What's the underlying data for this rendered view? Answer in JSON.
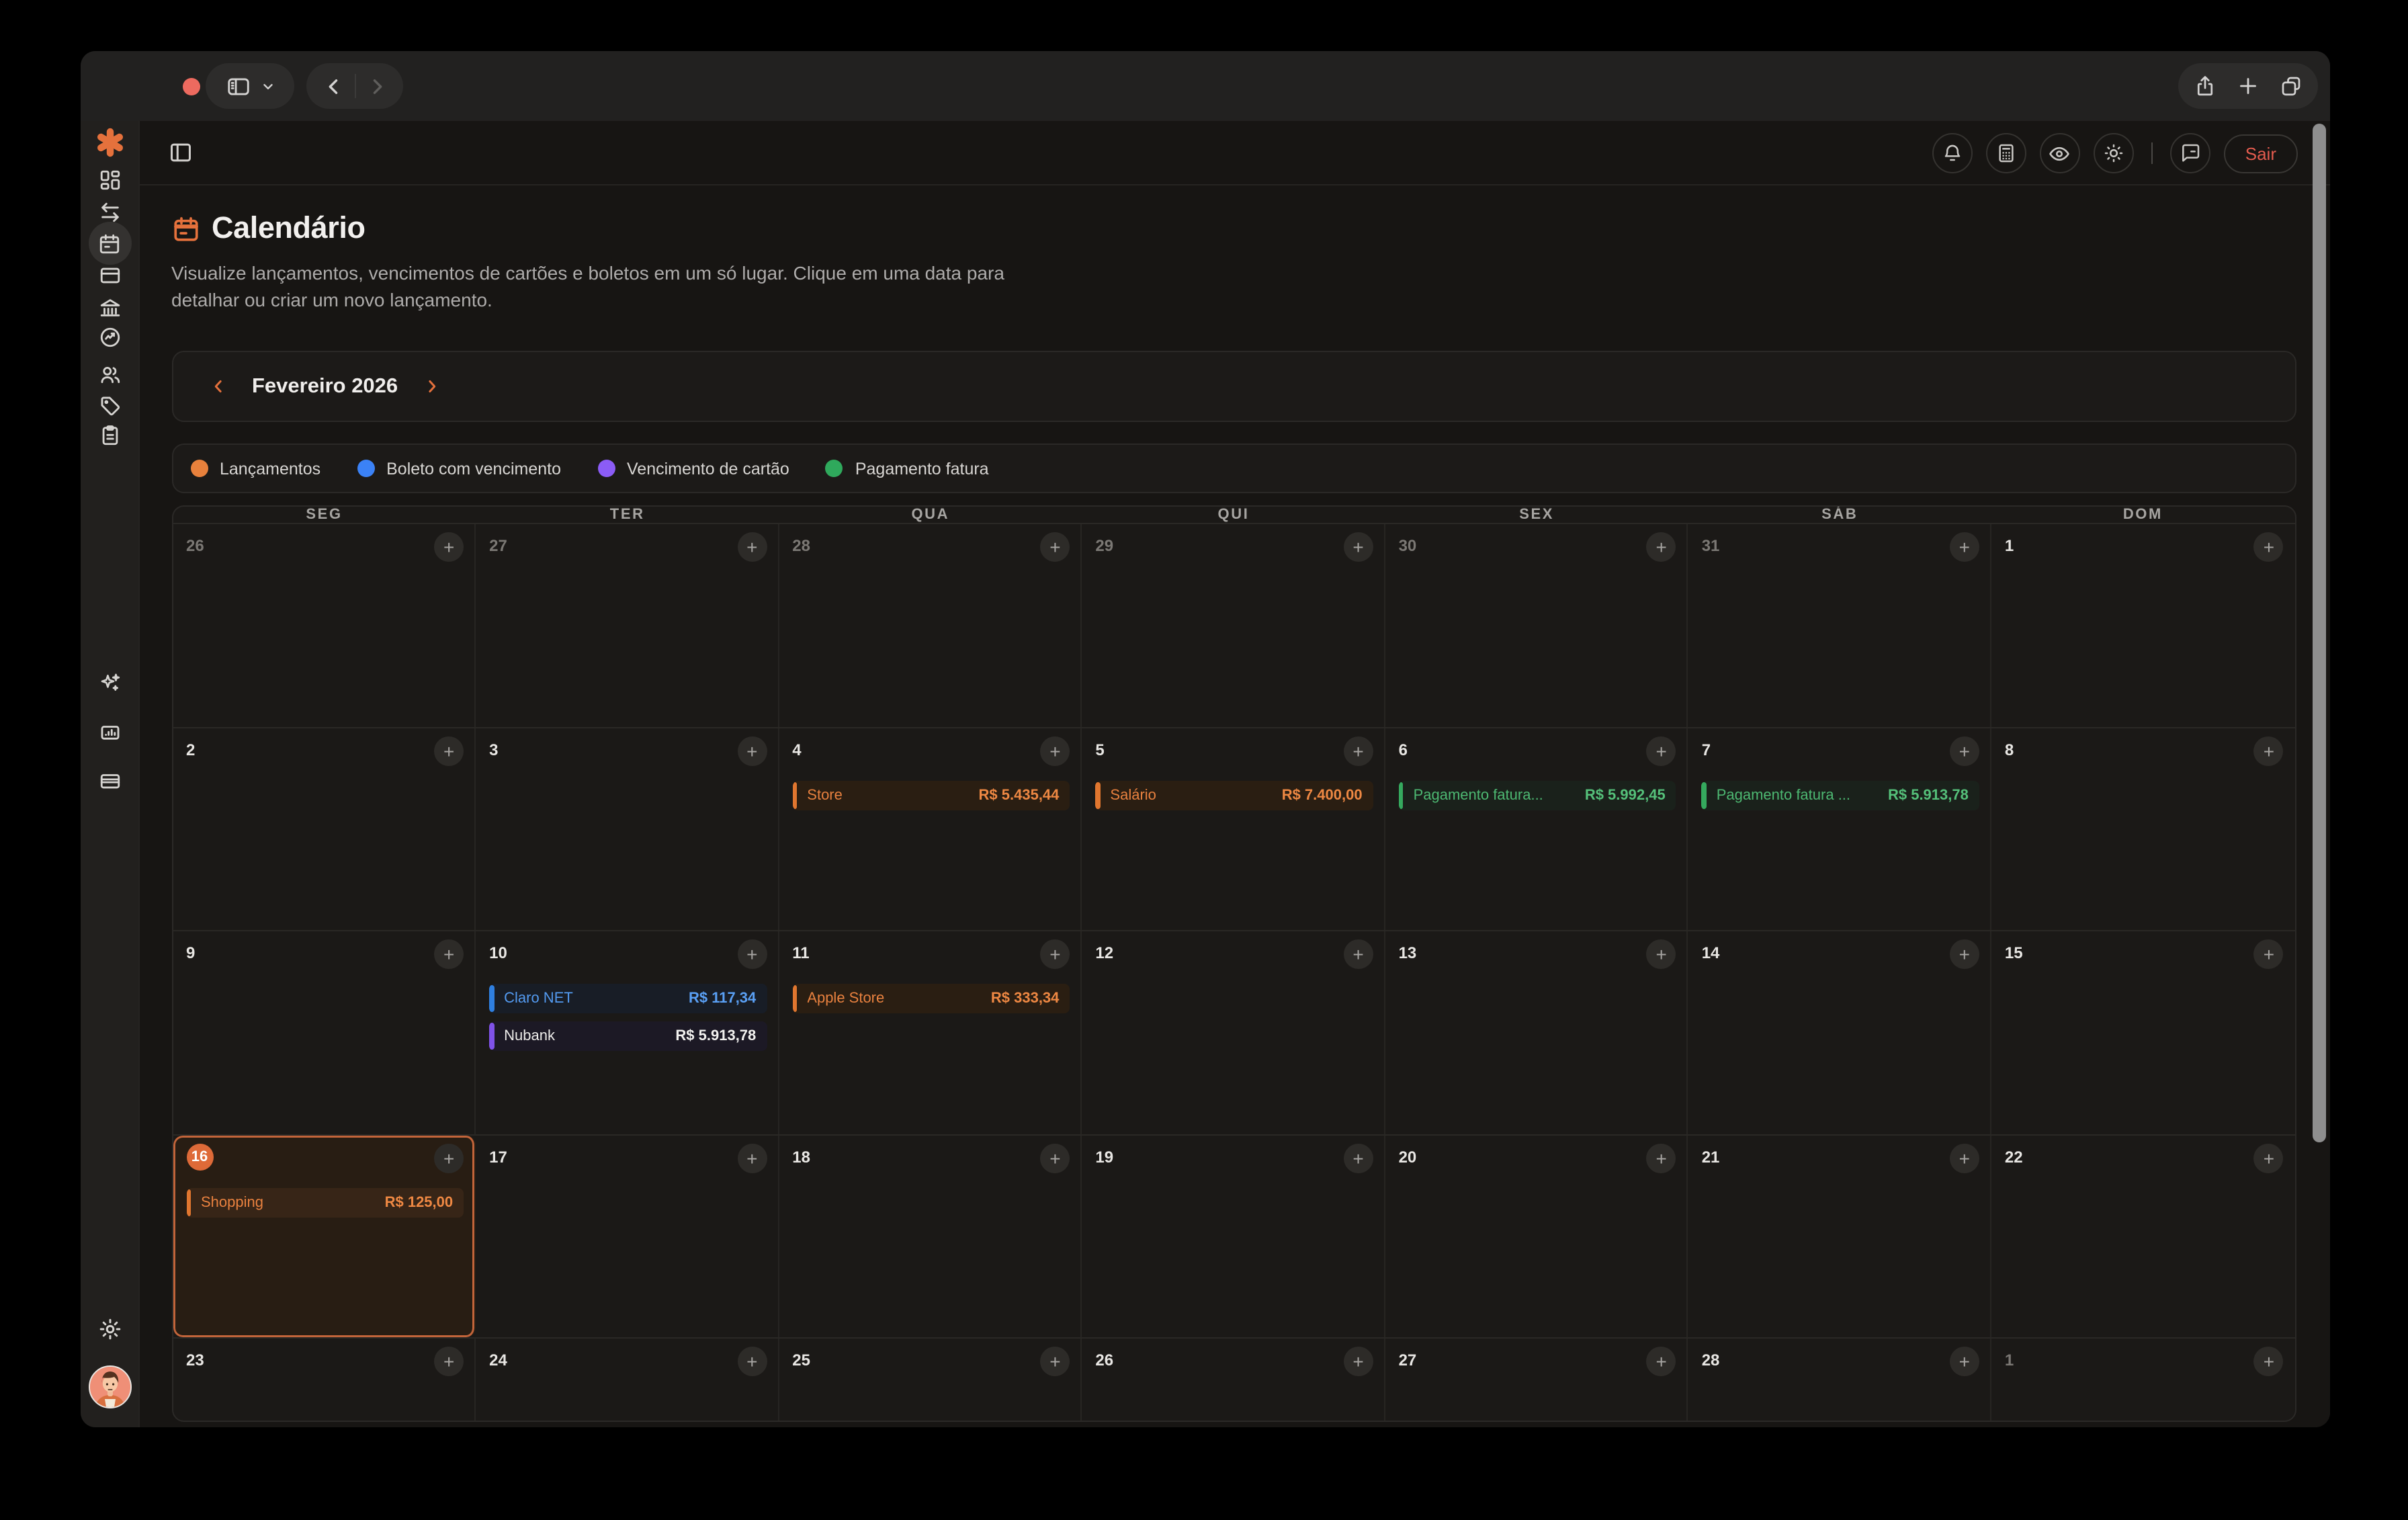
{
  "browser": {
    "window_controls": [
      "close",
      "minimize",
      "zoom"
    ],
    "toolbar_icons": [
      "sidebar-toggle",
      "chevron-down",
      "back",
      "forward",
      "share",
      "new-tab",
      "tab-overview"
    ]
  },
  "app_header": {
    "icons": [
      "bell",
      "calculator",
      "eye",
      "sun",
      "chat"
    ],
    "logout_label": "Sair",
    "logout_color": "#e25b4e"
  },
  "sidebar_icons": [
    "logo-asterisk",
    "dashboard",
    "transactions",
    "calendar",
    "cards",
    "bank",
    "performance",
    "users",
    "tags",
    "clipboard",
    "ai-sparkles",
    "reports",
    "wallet",
    "settings",
    "avatar"
  ],
  "page": {
    "title": "Calendário",
    "subtitle": "Visualize lançamentos, vencimentos de cartões e boletos em um só lugar. Clique em uma data para\ndetalhar ou criar um novo lançamento."
  },
  "month_nav": {
    "label": "Fevereiro 2026"
  },
  "legend": {
    "items": [
      {
        "label": "Lançamentos",
        "color": "#e8813c"
      },
      {
        "label": "Boleto com vencimento",
        "color": "#3b82f6"
      },
      {
        "label": "Vencimento de cartão",
        "color": "#8b5cf6"
      },
      {
        "label": "Pagamento fatura",
        "color": "#2fa95c"
      }
    ]
  },
  "calendar": {
    "weekdays": [
      "SEG",
      "TER",
      "QUA",
      "QUI",
      "SEX",
      "SÁB",
      "DOM"
    ],
    "weeks": [
      [
        {
          "day": "26",
          "muted": true
        },
        {
          "day": "27",
          "muted": true
        },
        {
          "day": "28",
          "muted": true
        },
        {
          "day": "29",
          "muted": true
        },
        {
          "day": "30",
          "muted": true
        },
        {
          "day": "31",
          "muted": true
        },
        {
          "day": "1",
          "muted": false
        }
      ],
      [
        {
          "day": "2"
        },
        {
          "day": "3"
        },
        {
          "day": "4",
          "events": [
            {
              "label": "Store",
              "amount": "R$ 5.435,44",
              "type": "lancamento"
            }
          ]
        },
        {
          "day": "5",
          "events": [
            {
              "label": "Salário",
              "amount": "R$ 7.400,00",
              "type": "lancamento"
            }
          ]
        },
        {
          "day": "6",
          "events": [
            {
              "label": "Pagamento fatura...",
              "amount": "R$ 5.992,45",
              "type": "fatura"
            }
          ]
        },
        {
          "day": "7",
          "events": [
            {
              "label": "Pagamento fatura ...",
              "amount": "R$ 5.913,78",
              "type": "fatura"
            }
          ]
        },
        {
          "day": "8"
        }
      ],
      [
        {
          "day": "9"
        },
        {
          "day": "10",
          "events": [
            {
              "label": "Claro NET",
              "amount": "R$ 117,34",
              "type": "boleto"
            },
            {
              "label": "Nubank",
              "amount": "R$ 5.913,78",
              "type": "cartao"
            }
          ]
        },
        {
          "day": "11",
          "events": [
            {
              "label": "Apple Store",
              "amount": "R$ 333,34",
              "type": "lancamento"
            }
          ]
        },
        {
          "day": "12"
        },
        {
          "day": "13"
        },
        {
          "day": "14"
        },
        {
          "day": "15"
        }
      ],
      [
        {
          "day": "16",
          "today": true,
          "events": [
            {
              "label": "Shopping",
              "amount": "R$ 125,00",
              "type": "lancamento"
            }
          ]
        },
        {
          "day": "17"
        },
        {
          "day": "18"
        },
        {
          "day": "19"
        },
        {
          "day": "20"
        },
        {
          "day": "21"
        },
        {
          "day": "22"
        }
      ],
      [
        {
          "day": "23"
        },
        {
          "day": "24"
        },
        {
          "day": "25"
        },
        {
          "day": "26"
        },
        {
          "day": "27"
        },
        {
          "day": "28"
        },
        {
          "day": "1",
          "muted": true
        }
      ]
    ]
  }
}
